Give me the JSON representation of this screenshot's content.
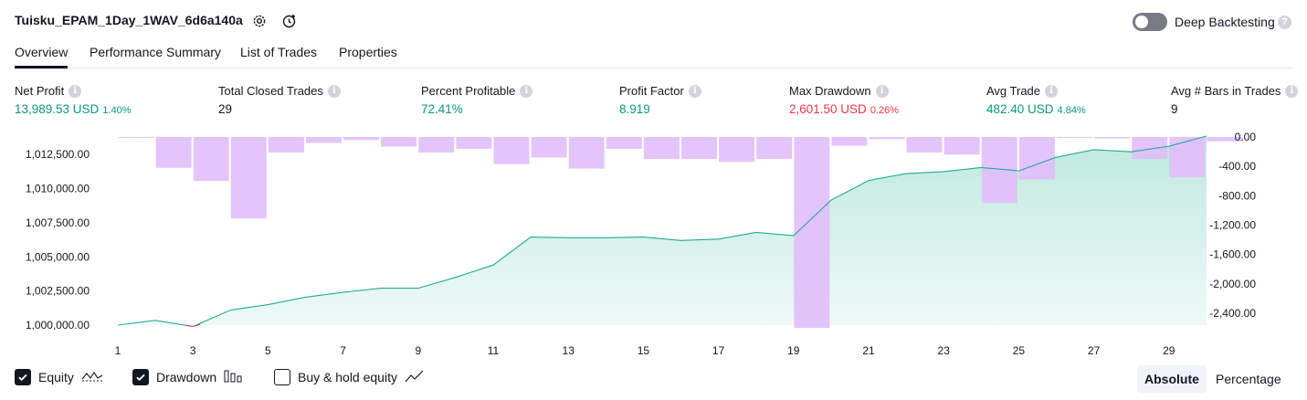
{
  "header": {
    "strategy_name": "Tuisku_EPAM_1Day_1WAV_6d6a140a",
    "settings_icon": "gear-icon",
    "add_alert_icon": "alert-plus-icon",
    "deep_backtesting_label": "Deep Backtesting",
    "deep_backtesting_enabled": false,
    "help_glyph": "?"
  },
  "tabs": [
    {
      "label": "Overview",
      "active": true
    },
    {
      "label": "Performance Summary",
      "active": false
    },
    {
      "label": "List of Trades",
      "active": false
    },
    {
      "label": "Properties",
      "active": false
    }
  ],
  "metrics": {
    "net_profit": {
      "label": "Net Profit",
      "value": "13,989.53 USD",
      "pct": "1.40%"
    },
    "total_closed_trades": {
      "label": "Total Closed Trades",
      "value": "29"
    },
    "percent_profitable": {
      "label": "Percent Profitable",
      "value": "72.41%"
    },
    "profit_factor": {
      "label": "Profit Factor",
      "value": "8.919"
    },
    "max_drawdown": {
      "label": "Max Drawdown",
      "value": "2,601.50 USD",
      "pct": "0.26%"
    },
    "avg_trade": {
      "label": "Avg Trade",
      "value": "482.40 USD",
      "pct": "4.84%"
    },
    "avg_bars": {
      "label": "Avg # Bars in Trades",
      "value": "9"
    },
    "info_glyph": "i"
  },
  "colors": {
    "positive": "#089981",
    "negative": "#f23645",
    "equity_line": "#22ab94",
    "equity_fill": "#b2e5d8",
    "drawdown_bar": "#e1bef9",
    "overlap": "#b4b4ef"
  },
  "chart_data": {
    "type": "line",
    "x": [
      1,
      2,
      3,
      4,
      5,
      6,
      7,
      8,
      9,
      10,
      11,
      12,
      13,
      14,
      15,
      16,
      17,
      18,
      19,
      20,
      21,
      22,
      23,
      24,
      25,
      26,
      27,
      28,
      29,
      30
    ],
    "x_ticks": [
      1,
      3,
      5,
      7,
      9,
      11,
      13,
      15,
      17,
      19,
      21,
      23,
      25,
      27,
      29
    ],
    "series": [
      {
        "name": "Equity",
        "axis": "left",
        "style": "area",
        "values": [
          1000000,
          1000350,
          999900,
          1001100,
          1001500,
          1002050,
          1002400,
          1002700,
          1002700,
          1003500,
          1004400,
          1006450,
          1006400,
          1006400,
          1006450,
          1006200,
          1006300,
          1006800,
          1006550,
          1009150,
          1010600,
          1011100,
          1011250,
          1011550,
          1011300,
          1012300,
          1012850,
          1012700,
          1013100,
          1013850
        ]
      },
      {
        "name": "Drawdown",
        "axis": "right",
        "style": "bar",
        "values": [
          -10,
          -420,
          -600,
          -1110,
          -210,
          -80,
          -40,
          -130,
          -210,
          -160,
          -370,
          -280,
          -430,
          -160,
          -300,
          -300,
          -340,
          -300,
          -2600,
          -120,
          -30,
          -210,
          -240,
          -900,
          -580,
          -10,
          -20,
          -300,
          -550,
          -60
        ]
      }
    ],
    "y_left": {
      "ticks": [
        "1,012,500.00",
        "1,010,000.00",
        "1,007,500.00",
        "1,005,000.00",
        "1,002,500.00",
        "1,000,000.00"
      ],
      "tick_values": [
        1012500,
        1010000,
        1007500,
        1005000,
        1002500,
        1000000
      ],
      "range": [
        1000000,
        1013850
      ]
    },
    "y_right": {
      "ticks": [
        "0.00",
        "-400.00",
        "-800.00",
        "-1,200.00",
        "-1,600.00",
        "-2,000.00",
        "-2,400.00"
      ],
      "tick_values": [
        0,
        -400,
        -800,
        -1200,
        -1600,
        -2000,
        -2400
      ],
      "range": [
        -2600,
        0
      ]
    },
    "grid": false
  },
  "legend": {
    "equity": {
      "label": "Equity",
      "checked": true,
      "icon": "equity-wave-icon"
    },
    "drawdown": {
      "label": "Drawdown",
      "checked": true,
      "icon": "drawdown-bars-icon"
    },
    "buy_hold": {
      "label": "Buy & hold equity",
      "checked": false,
      "icon": "trend-line-icon"
    },
    "mode_absolute": "Absolute",
    "mode_percentage": "Percentage",
    "active_mode": "Absolute"
  }
}
